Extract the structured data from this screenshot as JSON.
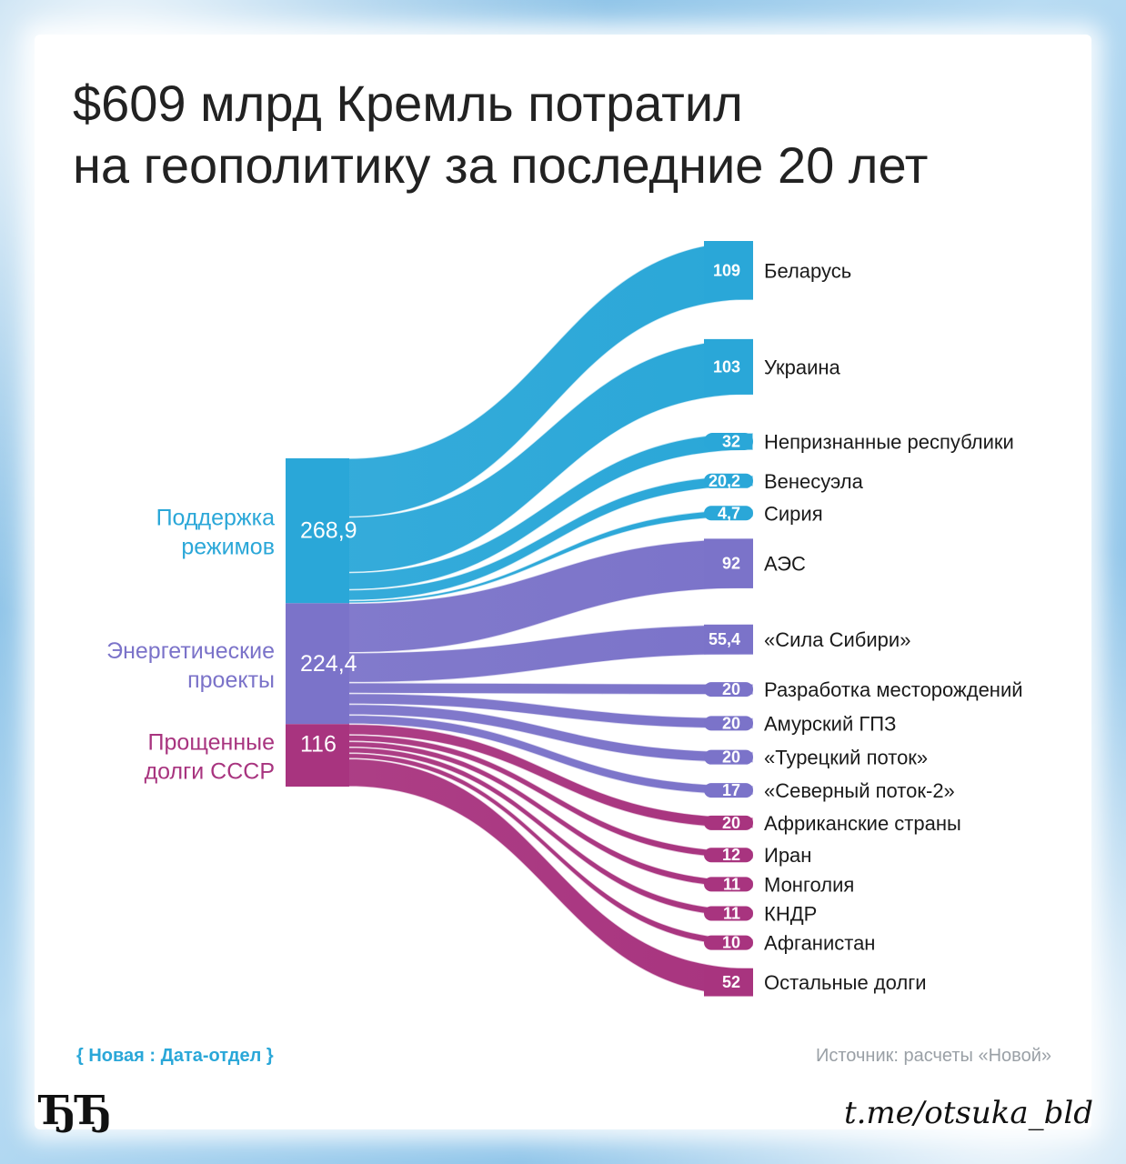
{
  "title": {
    "line1": "$609 млрд Кремль потратил",
    "line2": "на геополитику за последние 20 лет"
  },
  "chart_data": {
    "type": "sankey",
    "sources": [
      {
        "label_line1": "Поддержка",
        "label_line2": "режимов",
        "value": 268.9,
        "value_label": "268,9",
        "color": "#2aa7d8"
      },
      {
        "label_line1": "Энергетические",
        "label_line2": "проекты",
        "value": 224.4,
        "value_label": "224,4",
        "color": "#7b73c9"
      },
      {
        "label_line1": "Прощенные",
        "label_line2": "долги СССР",
        "value": 116,
        "value_label": "116",
        "color": "#a8347f"
      }
    ],
    "targets": [
      {
        "label": "Беларусь",
        "value": 109,
        "value_label": "109",
        "source": 0
      },
      {
        "label": "Украина",
        "value": 103,
        "value_label": "103",
        "source": 0
      },
      {
        "label": "Непризнанные республики",
        "value": 32,
        "value_label": "32",
        "source": 0
      },
      {
        "label": "Венесуэла",
        "value": 20.2,
        "value_label": "20,2",
        "source": 0
      },
      {
        "label": "Сирия",
        "value": 4.7,
        "value_label": "4,7",
        "source": 0
      },
      {
        "label": "АЭС",
        "value": 92,
        "value_label": "92",
        "source": 1
      },
      {
        "label": "«Сила Сибири»",
        "value": 55.4,
        "value_label": "55,4",
        "source": 1
      },
      {
        "label": "Разработка месторождений",
        "value": 20,
        "value_label": "20",
        "source": 1
      },
      {
        "label": "Амурский ГПЗ",
        "value": 20,
        "value_label": "20",
        "source": 1
      },
      {
        "label": "«Турецкий поток»",
        "value": 20,
        "value_label": "20",
        "source": 1
      },
      {
        "label": "«Северный поток-2»",
        "value": 17,
        "value_label": "17",
        "source": 1
      },
      {
        "label": "Африканские страны",
        "value": 20,
        "value_label": "20",
        "source": 2
      },
      {
        "label": "Иран",
        "value": 12,
        "value_label": "12",
        "source": 2
      },
      {
        "label": "Монголия",
        "value": 11,
        "value_label": "11",
        "source": 2
      },
      {
        "label": "КНДР",
        "value": 11,
        "value_label": "11",
        "source": 2
      },
      {
        "label": "Афганистан",
        "value": 10,
        "value_label": "10",
        "source": 2
      },
      {
        "label": "Остальные долги",
        "value": 52,
        "value_label": "52",
        "source": 2
      }
    ]
  },
  "footer": {
    "brand": "{ Новая : Дата-отдел }",
    "source": "Источник: расчеты «Новой»"
  },
  "watermark": {
    "logo": "ЂЂ",
    "handle": "t.me/otsuka_bld"
  }
}
